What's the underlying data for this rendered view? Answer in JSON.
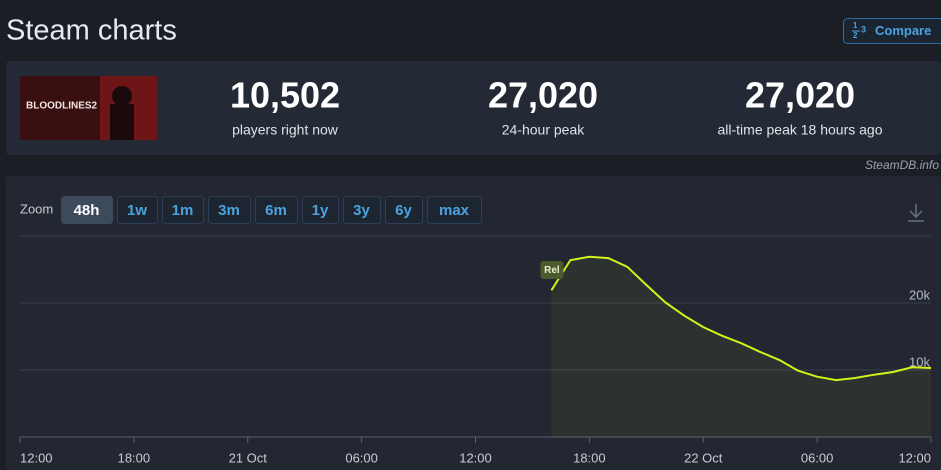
{
  "header": {
    "title": "Steam charts",
    "compare": "Compare"
  },
  "game": {
    "image_text": "BLOODLINES2"
  },
  "stats": [
    {
      "value": "10,502",
      "label": "players right now"
    },
    {
      "value": "27,020",
      "label": "24-hour peak"
    },
    {
      "value": "27,020",
      "label": "all-time peak 18 hours ago"
    }
  ],
  "watermark": "SteamDB.info",
  "zoom": {
    "label": "Zoom",
    "options": [
      "48h",
      "1w",
      "1m",
      "3m",
      "6m",
      "1y",
      "3y",
      "6y",
      "max"
    ],
    "active": "48h"
  },
  "chart_data": {
    "type": "line",
    "x": [
      28,
      29,
      30,
      31,
      32,
      33,
      34,
      35,
      36,
      37,
      38,
      39,
      40,
      41,
      42,
      43,
      44,
      45,
      46,
      47,
      48
    ],
    "series": [
      {
        "name": "Players",
        "color": "#d2f21a",
        "values": [
          21900,
          26400,
          26900,
          26700,
          25400,
          22700,
          20100,
          18100,
          16400,
          15100,
          14000,
          12700,
          11500,
          9900,
          9000,
          8500,
          8800,
          9300,
          9700,
          10400,
          10300
        ]
      }
    ],
    "xlim": [
      0,
      48
    ],
    "xticks": [
      {
        "value": 0,
        "label": "12:00"
      },
      {
        "value": 6,
        "label": "18:00"
      },
      {
        "value": 12,
        "label": "21 Oct"
      },
      {
        "value": 18,
        "label": "06:00"
      },
      {
        "value": 24,
        "label": "12:00"
      },
      {
        "value": 30,
        "label": "18:00"
      },
      {
        "value": 36,
        "label": "22 Oct"
      },
      {
        "value": 42,
        "label": "06:00"
      },
      {
        "value": 48,
        "label": "12:00"
      }
    ],
    "ylim": [
      0,
      30000
    ],
    "yticks": [
      {
        "value": 10000,
        "label": "10k"
      },
      {
        "value": 20000,
        "label": "20k"
      }
    ],
    "grid": true,
    "annotations": [
      {
        "text": "Rel",
        "x": 28
      }
    ]
  }
}
